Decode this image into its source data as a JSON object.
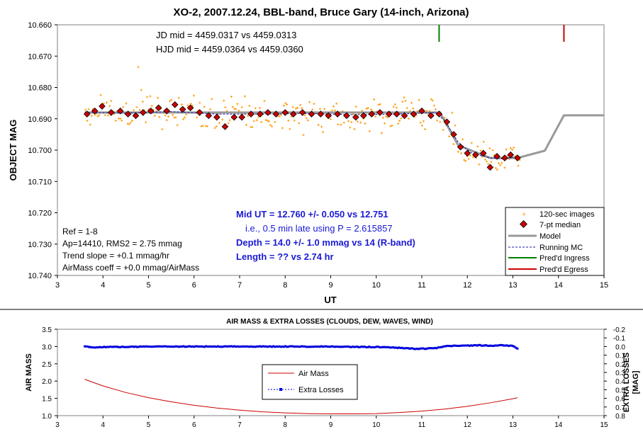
{
  "chart_data": [
    {
      "type": "scatter",
      "title": "XO-2, 2007.12.24, BBL-band, Bruce Gary (14-inch, Arizona)",
      "xlabel": "UT",
      "ylabel": "OBJECT MAG",
      "xlim": [
        3,
        15
      ],
      "ylim": [
        10.74,
        10.66
      ],
      "y_inverted": true,
      "x_ticks": [
        "3",
        "4",
        "5",
        "6",
        "7",
        "8",
        "9",
        "10",
        "11",
        "12",
        "13",
        "14",
        "15"
      ],
      "y_ticks": [
        "10.660",
        "10.670",
        "10.680",
        "10.690",
        "10.700",
        "10.710",
        "10.720",
        "10.730",
        "10.740"
      ],
      "annotations": {
        "jd": "JD mid = 4459.0317 vs 4459.0313",
        "hjd": "HJD mid = 4459.0364 vs 4459.0360",
        "mid_ut": "Mid UT = 12.760 +/- 0.050 vs 12.751",
        "late": "i.e., 0.5 min late using P = 2.615857",
        "depth": "Depth = 14.0 +/- 1.0 mmag vs 14 (R-band)",
        "length": "Length = ?? vs 2.74 hr",
        "ref": "Ref = 1-8",
        "ap": "Ap=14410, RMS2 = 2.75 mmag",
        "trend": "Trend slope = +0.1 mmag/hr",
        "airmass_coeff": "AirMass coeff = +0.0 mmag/AirMass"
      },
      "legend": [
        {
          "name": "120-sec images",
          "color": "#ff9900"
        },
        {
          "name": "7-pt median",
          "color": "#cc0000"
        },
        {
          "name": "Model",
          "color": "#999999"
        },
        {
          "name": "Running MC",
          "color": "#1a1aa6"
        },
        {
          "name": "Pred'd Ingress",
          "color": "#008000"
        },
        {
          "name": "Pred'd Egress",
          "color": "#d00000"
        }
      ],
      "legend_position": "bottom-right",
      "ingress_ut": 11.38,
      "egress_ut": 14.12,
      "model": {
        "x": [
          3.6,
          11.4,
          11.8,
          12.5,
          13.1,
          13.7,
          14.12,
          15
        ],
        "y": [
          10.688,
          10.688,
          10.6985,
          10.7025,
          10.7025,
          10.7002,
          10.6889,
          10.6889
        ]
      },
      "median": {
        "x": [
          3.65,
          3.82,
          3.98,
          4.18,
          4.38,
          4.55,
          4.72,
          4.88,
          5.05,
          5.22,
          5.4,
          5.58,
          5.75,
          5.92,
          6.12,
          6.32,
          6.5,
          6.68,
          6.88,
          7.05,
          7.25,
          7.45,
          7.62,
          7.8,
          8.0,
          8.18,
          8.38,
          8.58,
          8.78,
          8.95,
          9.15,
          9.35,
          9.55,
          9.72,
          9.9,
          10.08,
          10.28,
          10.45,
          10.62,
          10.82,
          11.0,
          11.2,
          11.38,
          11.55,
          11.7,
          11.85,
          12.0,
          12.18,
          12.35,
          12.5,
          12.65,
          12.82,
          12.95,
          13.1
        ],
        "y": [
          10.6885,
          10.6875,
          10.686,
          10.688,
          10.6875,
          10.6885,
          10.689,
          10.688,
          10.6875,
          10.6865,
          10.6875,
          10.6855,
          10.687,
          10.6865,
          10.688,
          10.689,
          10.6895,
          10.6925,
          10.6895,
          10.6895,
          10.6885,
          10.6885,
          10.688,
          10.6885,
          10.688,
          10.6885,
          10.688,
          10.6885,
          10.6885,
          10.689,
          10.6885,
          10.689,
          10.6895,
          10.689,
          10.6885,
          10.688,
          10.6885,
          10.6885,
          10.689,
          10.6885,
          10.6875,
          10.689,
          10.6885,
          10.691,
          10.695,
          10.699,
          10.701,
          10.7015,
          10.701,
          10.7055,
          10.702,
          10.7025,
          10.7015,
          10.7025
        ]
      },
      "running_mc": {
        "x": [
          3.6,
          4.5,
          5.5,
          6.5,
          7.5,
          8.5,
          9.5,
          10.5,
          11.3,
          11.5,
          11.8,
          12.1,
          12.5,
          12.8,
          13.1
        ],
        "y": [
          10.688,
          10.6882,
          10.6877,
          10.6885,
          10.6885,
          10.6883,
          10.6887,
          10.6885,
          10.688,
          10.6905,
          10.6975,
          10.701,
          10.7025,
          10.7028,
          10.702
        ]
      },
      "images": {
        "x_start": 3.62,
        "x_end": 13.15,
        "count": 290,
        "scatter_mmag": 2.75
      }
    },
    {
      "type": "line",
      "title": "AIR MASS & EXTRA LOSSES (CLOUDS, DEW, WAVES, WIND)",
      "ylabel": "AIR MASS",
      "y2label": "EXTRA LOSSES\n[MAG]",
      "xlim": [
        3,
        15
      ],
      "ylim": [
        1.0,
        3.5
      ],
      "y2lim": [
        0.8,
        -0.2
      ],
      "x_ticks": [
        "3",
        "4",
        "5",
        "6",
        "7",
        "8",
        "9",
        "10",
        "11",
        "12",
        "13",
        "14",
        "15"
      ],
      "y_ticks": [
        "1.0",
        "1.5",
        "2.0",
        "2.5",
        "3.0",
        "3.5"
      ],
      "y2_ticks": [
        "-0.2",
        "-0.1",
        "0.0",
        "0.1",
        "0.2",
        "0.3",
        "0.4",
        "0.5",
        "0.6",
        "0.7",
        "0.8"
      ],
      "legend": [
        {
          "name": "Air Mass",
          "color": "#cc0000"
        },
        {
          "name": "Extra Losses",
          "color": "#0000dd"
        }
      ],
      "legend_position": "center",
      "series": [
        {
          "name": "Air Mass",
          "x": [
            3.6,
            4.0,
            4.5,
            5.0,
            5.5,
            6.0,
            6.5,
            7.0,
            7.5,
            8.0,
            8.5,
            9.0,
            9.5,
            10.0,
            10.5,
            11.0,
            11.5,
            12.0,
            12.5,
            13.0,
            13.1
          ],
          "y": [
            2.05,
            1.86,
            1.67,
            1.52,
            1.4,
            1.3,
            1.22,
            1.16,
            1.11,
            1.08,
            1.06,
            1.05,
            1.05,
            1.06,
            1.09,
            1.13,
            1.19,
            1.27,
            1.37,
            1.49,
            1.52
          ]
        },
        {
          "name": "Extra Losses",
          "x": [
            3.6,
            3.8,
            4.0,
            4.5,
            5.0,
            5.5,
            6.0,
            6.5,
            7.0,
            7.5,
            8.0,
            8.5,
            9.0,
            9.5,
            10.0,
            10.5,
            10.8,
            11.0,
            11.3,
            11.5,
            11.8,
            12.0,
            12.2,
            12.5,
            12.8,
            13.0,
            13.1
          ],
          "y": [
            0.0,
            0.01,
            0.005,
            0.005,
            0.0,
            0.0,
            0.0,
            0.0,
            0.0,
            0.0,
            0.0,
            0.0,
            0.0,
            0.005,
            0.005,
            0.015,
            0.025,
            0.025,
            0.02,
            -0.005,
            -0.01,
            -0.01,
            -0.015,
            -0.01,
            -0.015,
            -0.005,
            0.025
          ]
        }
      ]
    }
  ]
}
